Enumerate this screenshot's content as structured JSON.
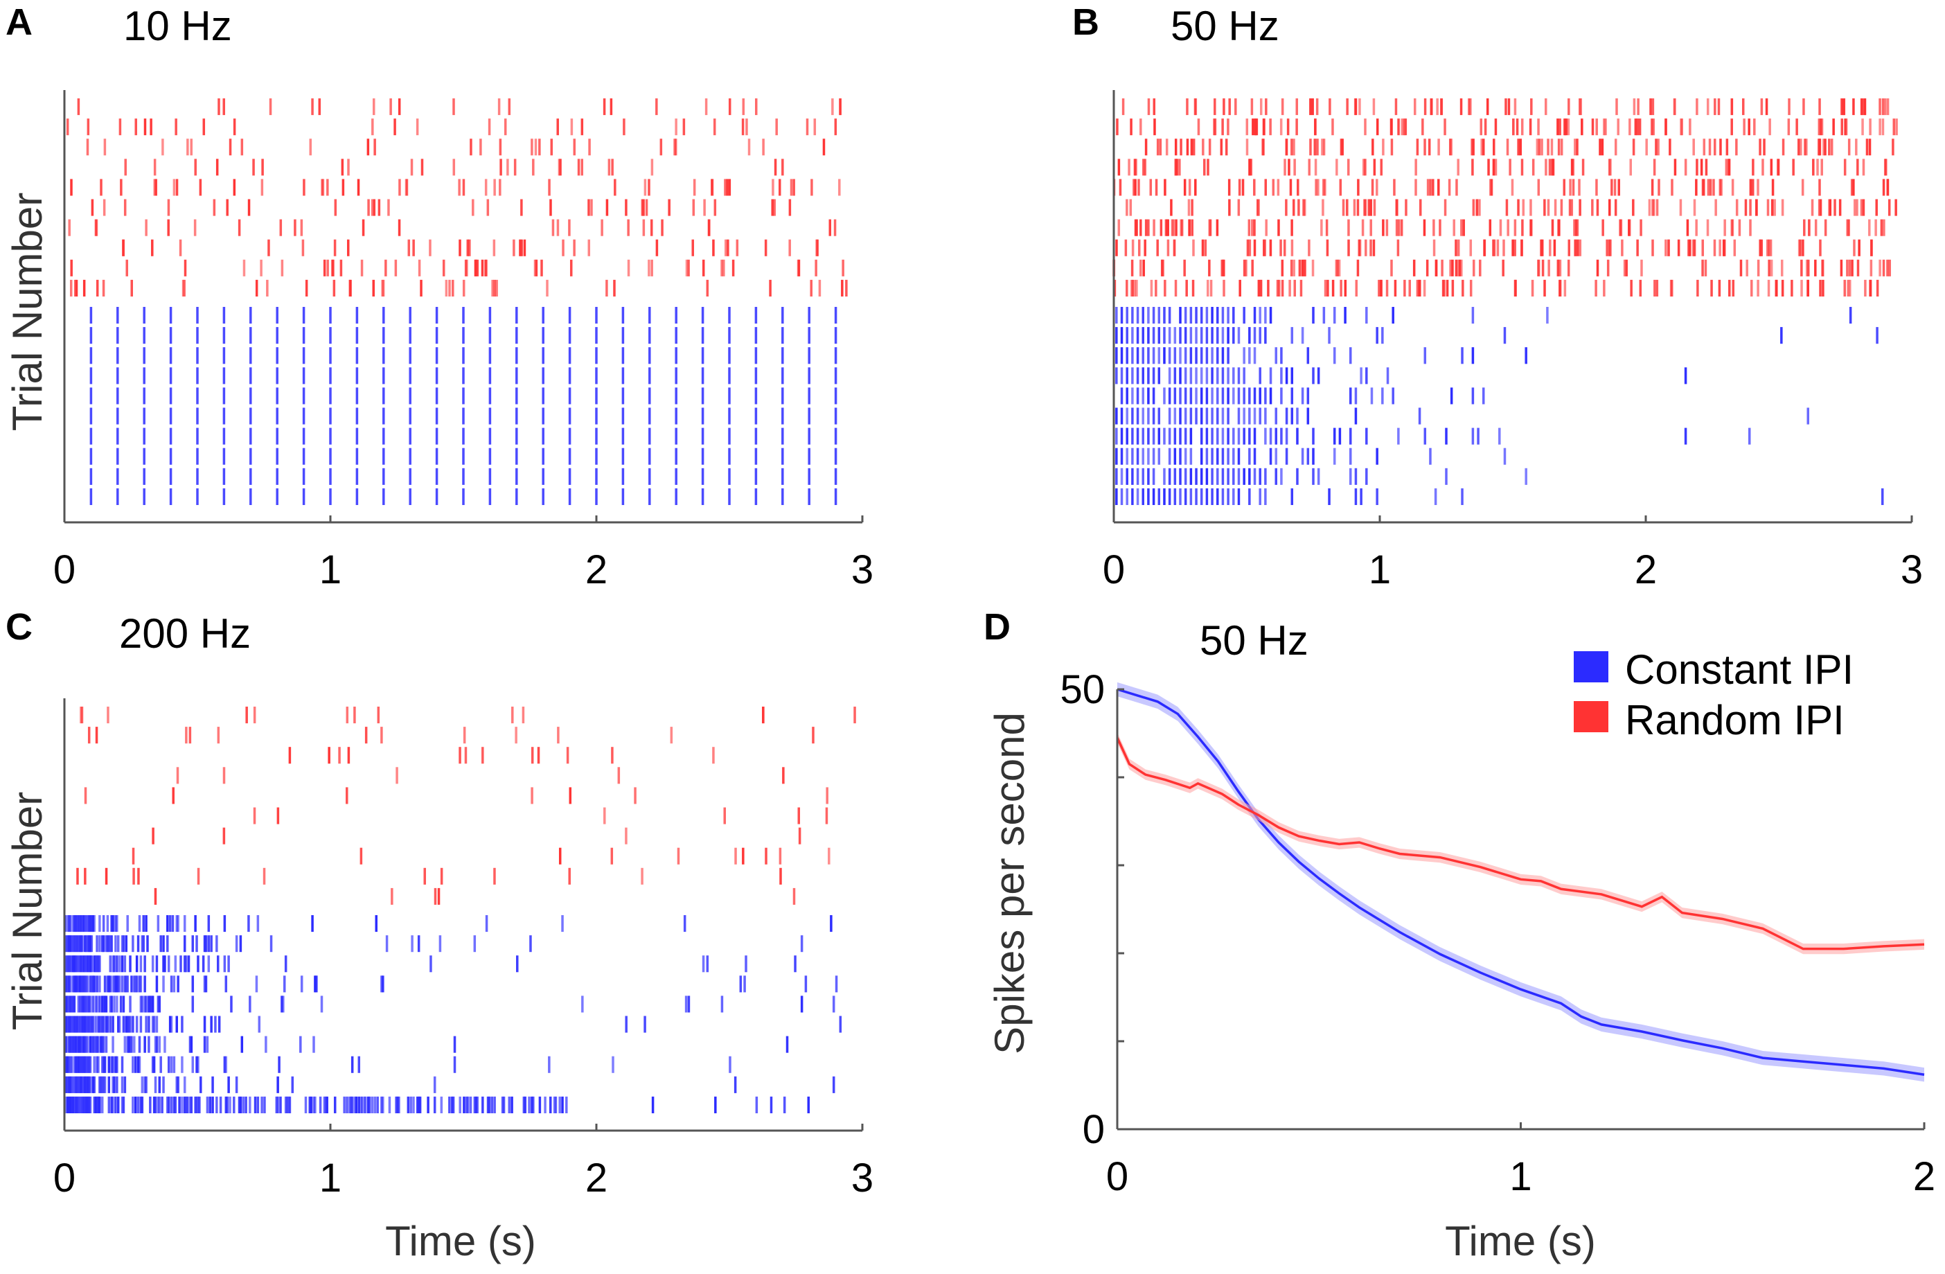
{
  "colors": {
    "constant": "#2b2bff",
    "random": "#ff3333",
    "axis": "#555555",
    "band_constant": "#9a9aff",
    "band_random": "#ffa0a0"
  },
  "chart_data": [
    {
      "panel": "A",
      "type": "raster",
      "title": "10 Hz",
      "ylabel": "Trial Number",
      "xlabel": "",
      "xlim": [
        0,
        3
      ],
      "xticks": [
        0,
        1,
        2,
        3
      ],
      "tick_labels": [
        "0",
        "1",
        "2",
        "3"
      ],
      "trials_per_condition": 10,
      "constant": {
        "name": "Constant IPI",
        "rate_hz": 10,
        "pattern": "regular",
        "duration_s": [
          0,
          2.9
        ]
      },
      "random": {
        "name": "Random IPI",
        "rate_hz": 10,
        "pattern": "random",
        "duration_s": [
          0,
          2.95
        ]
      }
    },
    {
      "panel": "B",
      "type": "raster",
      "title": "50 Hz",
      "ylabel": "",
      "xlabel": "",
      "xlim": [
        0,
        3
      ],
      "xticks": [
        0,
        1,
        2,
        3
      ],
      "tick_labels": [
        "0",
        "1",
        "2",
        "3"
      ],
      "trials_per_condition": 10,
      "constant": {
        "name": "Constant IPI",
        "rate_hz": 50,
        "pattern": "adapting",
        "dense_until_s": 0.45,
        "duration_s": [
          0,
          2.95
        ]
      },
      "random": {
        "name": "Random IPI",
        "rate_hz": 50,
        "pattern": "random",
        "duration_s": [
          0,
          2.95
        ]
      }
    },
    {
      "panel": "C",
      "type": "raster",
      "title": "200 Hz",
      "ylabel": "Trial Number",
      "xlabel": "Time (s)",
      "xlim": [
        0,
        3
      ],
      "xticks": [
        0,
        1,
        2,
        3
      ],
      "tick_labels": [
        "0",
        "1",
        "2",
        "3"
      ],
      "trials_per_condition": 10,
      "constant": {
        "name": "Constant IPI",
        "rate_hz": 200,
        "pattern": "adapting",
        "dense_until_s": 0.1,
        "duration_s": [
          0,
          2.95
        ]
      },
      "random": {
        "name": "Random IPI",
        "rate_hz": 200,
        "pattern": "random",
        "duration_s": [
          0,
          2.98
        ]
      }
    },
    {
      "panel": "D",
      "type": "line",
      "title": "50 Hz",
      "xlabel": "Time (s)",
      "ylabel": "Spikes per second",
      "xlim": [
        0,
        2
      ],
      "ylim": [
        0,
        50
      ],
      "xticks": [
        0,
        1,
        2
      ],
      "yticks": [
        0,
        50
      ],
      "xtick_labels": [
        "0",
        "1",
        "2"
      ],
      "ytick_labels": [
        "0",
        "50"
      ],
      "legend": [
        "Constant IPI",
        "Random IPI"
      ],
      "series": [
        {
          "name": "Constant IPI",
          "x": [
            0,
            0.05,
            0.1,
            0.15,
            0.2,
            0.25,
            0.3,
            0.35,
            0.4,
            0.45,
            0.5,
            0.55,
            0.6,
            0.7,
            0.8,
            0.9,
            1.0,
            1.1,
            1.15,
            1.2,
            1.3,
            1.4,
            1.5,
            1.6,
            1.7,
            1.8,
            1.9,
            2.0
          ],
          "y": [
            50,
            49.3,
            48.6,
            47.2,
            44.6,
            41.8,
            38.4,
            35.2,
            32.6,
            30.4,
            28.5,
            26.8,
            25.2,
            22.4,
            19.9,
            17.8,
            15.9,
            14.3,
            12.8,
            11.9,
            11.1,
            10.1,
            9.2,
            8.1,
            7.7,
            7.3,
            6.9,
            6.2
          ],
          "sem": 0.8
        },
        {
          "name": "Random IPI",
          "x": [
            0,
            0.03,
            0.07,
            0.12,
            0.18,
            0.2,
            0.26,
            0.3,
            0.35,
            0.4,
            0.45,
            0.5,
            0.55,
            0.6,
            0.65,
            0.7,
            0.8,
            0.9,
            1.0,
            1.05,
            1.1,
            1.2,
            1.3,
            1.35,
            1.4,
            1.5,
            1.6,
            1.7,
            1.8,
            1.9,
            2.0
          ],
          "y": [
            44.5,
            41.5,
            40.3,
            39.7,
            38.8,
            39.3,
            38.1,
            36.9,
            35.7,
            34.3,
            33.3,
            32.8,
            32.4,
            32.6,
            31.9,
            31.3,
            30.9,
            29.8,
            28.4,
            28.2,
            27.3,
            26.7,
            25.3,
            26.4,
            24.6,
            23.9,
            22.8,
            20.5,
            20.5,
            20.8,
            21.0
          ],
          "sem": 0.6
        }
      ]
    }
  ]
}
